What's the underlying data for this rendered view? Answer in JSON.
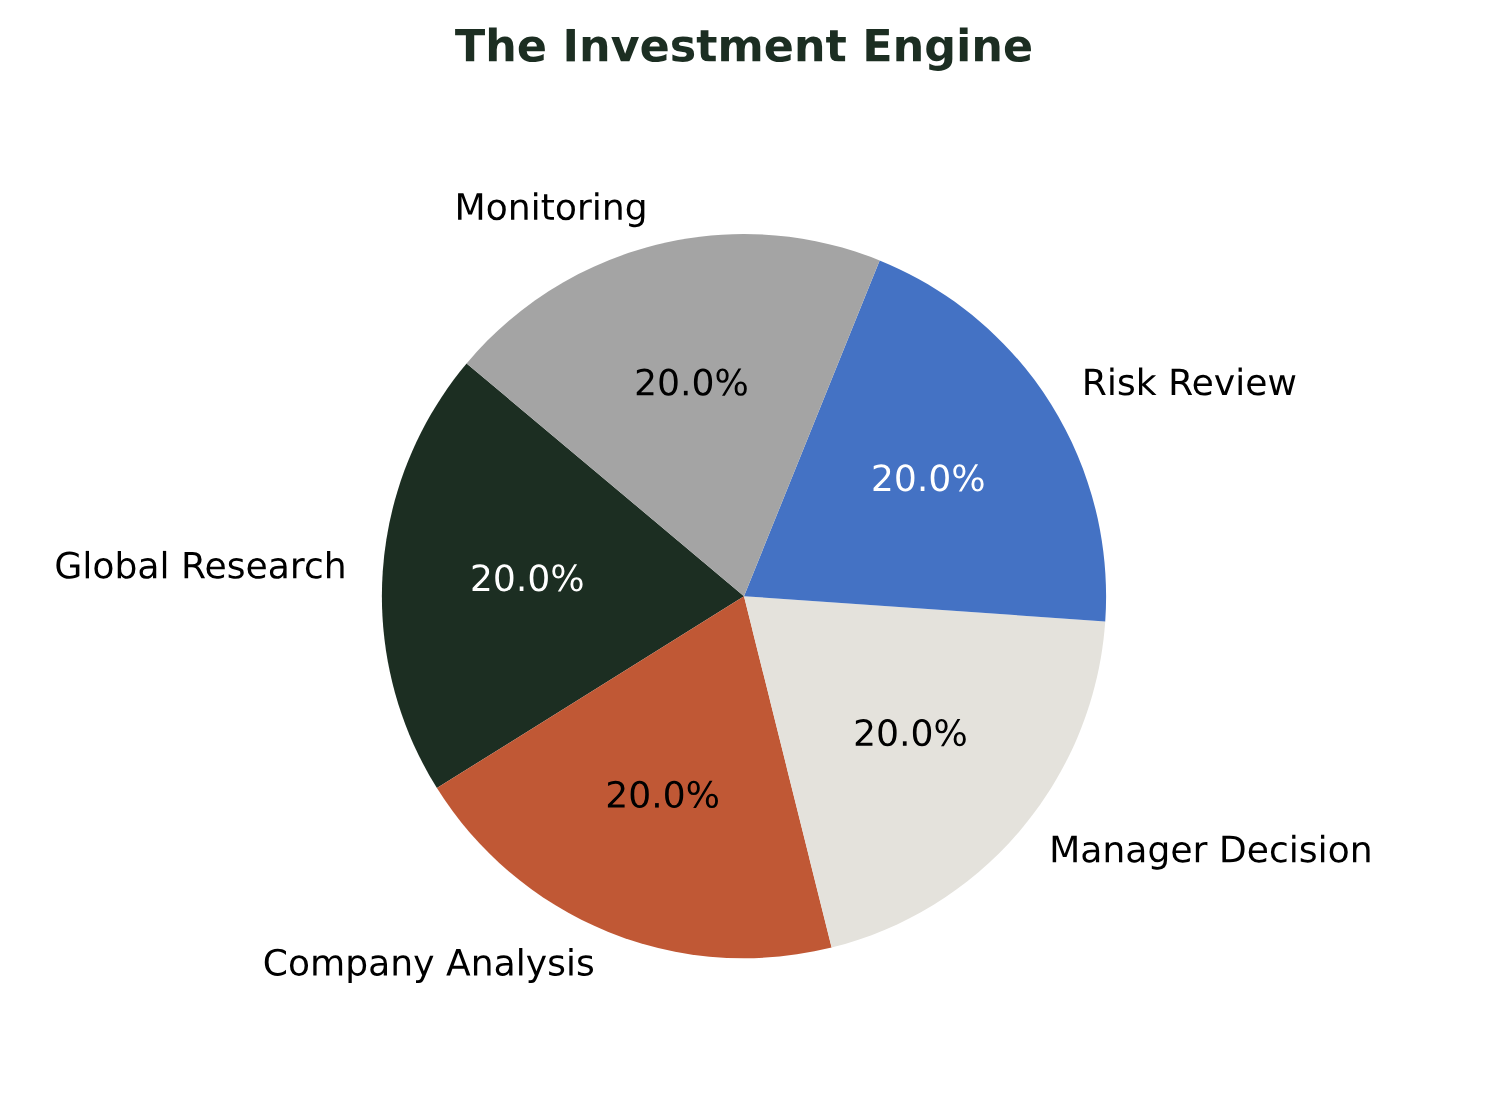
{
  "chart_data": {
    "type": "pie",
    "title": "The Investment Engine",
    "categories": [
      "Global Research",
      "Company Analysis",
      "Manager Decision",
      "Risk Review",
      "Monitoring"
    ],
    "values": [
      20,
      20,
      20,
      20,
      20
    ],
    "value_labels": [
      "20.0%",
      "20.0%",
      "20.0%",
      "20.0%",
      "20.0%"
    ],
    "colors": [
      "#1c2e22",
      "#c05835",
      "#e4e2dc",
      "#4472c4",
      "#a4a4a4"
    ]
  }
}
